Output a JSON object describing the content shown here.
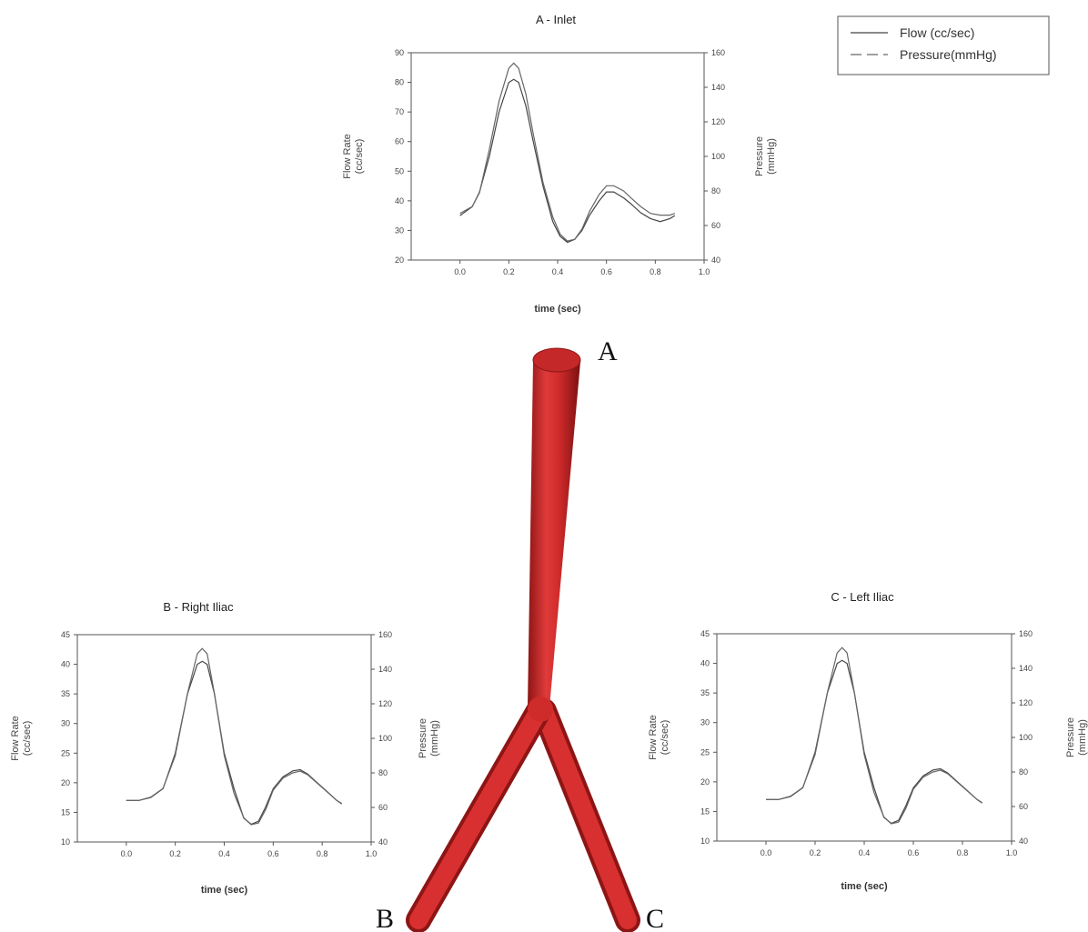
{
  "legend": {
    "flow": "Flow (cc/sec)",
    "pressure": "Pressure(mmHg)"
  },
  "markers": {
    "a": "A",
    "b": "B",
    "c": "C"
  },
  "colors": {
    "vessel": "#cf2b2b",
    "vessel_dark": "#8e1515",
    "flow": "#444444",
    "pressure": "#666666"
  },
  "chart_data": [
    {
      "type": "line",
      "title": "A - Inlet",
      "xlabel": "time (sec)",
      "ylabel": "Flow Rate (cc/sec)",
      "y2label": "Pressure (mmHg)",
      "xlim": [
        -0.2,
        1.0
      ],
      "ylim": [
        20,
        90
      ],
      "y2lim": [
        40,
        160
      ],
      "xticks": [
        "0.0",
        "0.2",
        "0.4",
        "0.6",
        "0.8",
        "1.0"
      ],
      "yticks": [
        "20",
        "30",
        "40",
        "50",
        "60",
        "70",
        "80",
        "90"
      ],
      "y2ticks": [
        "40",
        "60",
        "80",
        "100",
        "120",
        "140",
        "160"
      ],
      "series": [
        {
          "name": "Flow (cc/sec)",
          "axis": "left",
          "x": [
            0.0,
            0.05,
            0.08,
            0.12,
            0.16,
            0.2,
            0.22,
            0.24,
            0.27,
            0.3,
            0.34,
            0.38,
            0.41,
            0.44,
            0.47,
            0.5,
            0.53,
            0.57,
            0.6,
            0.63,
            0.67,
            0.7,
            0.74,
            0.78,
            0.82,
            0.86,
            0.88
          ],
          "y": [
            35,
            38,
            43,
            55,
            70,
            80,
            81,
            80,
            72,
            60,
            45,
            33,
            28,
            26,
            27,
            30,
            35,
            40,
            43,
            43,
            41,
            39,
            36,
            34,
            33,
            34,
            35
          ]
        },
        {
          "name": "Pressure(mmHg)",
          "axis": "right",
          "x": [
            0.0,
            0.05,
            0.08,
            0.12,
            0.16,
            0.2,
            0.22,
            0.24,
            0.27,
            0.3,
            0.34,
            0.38,
            0.41,
            0.44,
            0.47,
            0.5,
            0.53,
            0.57,
            0.6,
            0.63,
            0.67,
            0.7,
            0.74,
            0.78,
            0.82,
            0.86,
            0.88
          ],
          "y": [
            67,
            71,
            79,
            104,
            132,
            151,
            154,
            151,
            136,
            113,
            85,
            65,
            55,
            51,
            52,
            58,
            68,
            78,
            83,
            83,
            80,
            76,
            71,
            67,
            66,
            66,
            67
          ]
        }
      ]
    },
    {
      "type": "line",
      "title": "B - Right Iliac",
      "xlabel": "time (sec)",
      "ylabel": "Flow Rate (cc/sec)",
      "y2label": "Pressure (mmHg)",
      "xlim": [
        -0.2,
        1.0
      ],
      "ylim": [
        10,
        45
      ],
      "y2lim": [
        40,
        160
      ],
      "xticks": [
        "0.0",
        "0.2",
        "0.4",
        "0.6",
        "0.8",
        "1.0"
      ],
      "yticks": [
        "10",
        "15",
        "20",
        "25",
        "30",
        "35",
        "40",
        "45"
      ],
      "y2ticks": [
        "40",
        "60",
        "80",
        "100",
        "120",
        "140",
        "160"
      ],
      "series": [
        {
          "name": "Flow (cc/sec)",
          "axis": "left",
          "x": [
            0.0,
            0.05,
            0.1,
            0.15,
            0.2,
            0.25,
            0.29,
            0.31,
            0.33,
            0.36,
            0.4,
            0.44,
            0.48,
            0.51,
            0.54,
            0.57,
            0.6,
            0.64,
            0.68,
            0.71,
            0.74,
            0.78,
            0.82,
            0.86,
            0.88
          ],
          "y": [
            17,
            17,
            17.5,
            19,
            25,
            35,
            40,
            40.5,
            40,
            35,
            25,
            19,
            14,
            13,
            13.5,
            16,
            19,
            21,
            22,
            22.2,
            21.5,
            20,
            18.5,
            17,
            16.5
          ]
        },
        {
          "name": "Pressure(mmHg)",
          "axis": "right",
          "x": [
            0.0,
            0.05,
            0.1,
            0.15,
            0.2,
            0.25,
            0.29,
            0.31,
            0.33,
            0.36,
            0.4,
            0.44,
            0.48,
            0.51,
            0.54,
            0.57,
            0.6,
            0.64,
            0.68,
            0.71,
            0.74,
            0.78,
            0.82,
            0.86,
            0.88
          ],
          "y": [
            64,
            64,
            66,
            71,
            90,
            126,
            149,
            152,
            149,
            126,
            90,
            68,
            54,
            50,
            51,
            59,
            70,
            77,
            80,
            81,
            79,
            74,
            69,
            64,
            62
          ]
        }
      ]
    },
    {
      "type": "line",
      "title": "C - Left Iliac",
      "xlabel": "time (sec)",
      "ylabel": "Flow Rate (cc/sec)",
      "y2label": "Pressure (mmHg)",
      "xlim": [
        -0.2,
        1.0
      ],
      "ylim": [
        10,
        45
      ],
      "y2lim": [
        40,
        160
      ],
      "xticks": [
        "0.0",
        "0.2",
        "0.4",
        "0.6",
        "0.8",
        "1.0"
      ],
      "yticks": [
        "10",
        "15",
        "20",
        "25",
        "30",
        "35",
        "40",
        "45"
      ],
      "y2ticks": [
        "40",
        "60",
        "80",
        "100",
        "120",
        "140",
        "160"
      ],
      "series": [
        {
          "name": "Flow (cc/sec)",
          "axis": "left",
          "x": [
            0.0,
            0.05,
            0.1,
            0.15,
            0.2,
            0.25,
            0.29,
            0.31,
            0.33,
            0.36,
            0.4,
            0.44,
            0.48,
            0.51,
            0.54,
            0.57,
            0.6,
            0.64,
            0.68,
            0.71,
            0.74,
            0.78,
            0.82,
            0.86,
            0.88
          ],
          "y": [
            17,
            17,
            17.5,
            19,
            25,
            35,
            40,
            40.5,
            40,
            35,
            25,
            19,
            14,
            13,
            13.5,
            16,
            19,
            21,
            22,
            22.2,
            21.5,
            20,
            18.5,
            17,
            16.5
          ]
        },
        {
          "name": "Pressure(mmHg)",
          "axis": "right",
          "x": [
            0.0,
            0.05,
            0.1,
            0.15,
            0.2,
            0.25,
            0.29,
            0.31,
            0.33,
            0.36,
            0.4,
            0.44,
            0.48,
            0.51,
            0.54,
            0.57,
            0.6,
            0.64,
            0.68,
            0.71,
            0.74,
            0.78,
            0.82,
            0.86,
            0.88
          ],
          "y": [
            64,
            64,
            66,
            71,
            90,
            126,
            149,
            152,
            149,
            126,
            90,
            68,
            54,
            50,
            51,
            59,
            70,
            77,
            80,
            81,
            79,
            74,
            69,
            64,
            62
          ]
        }
      ]
    }
  ]
}
